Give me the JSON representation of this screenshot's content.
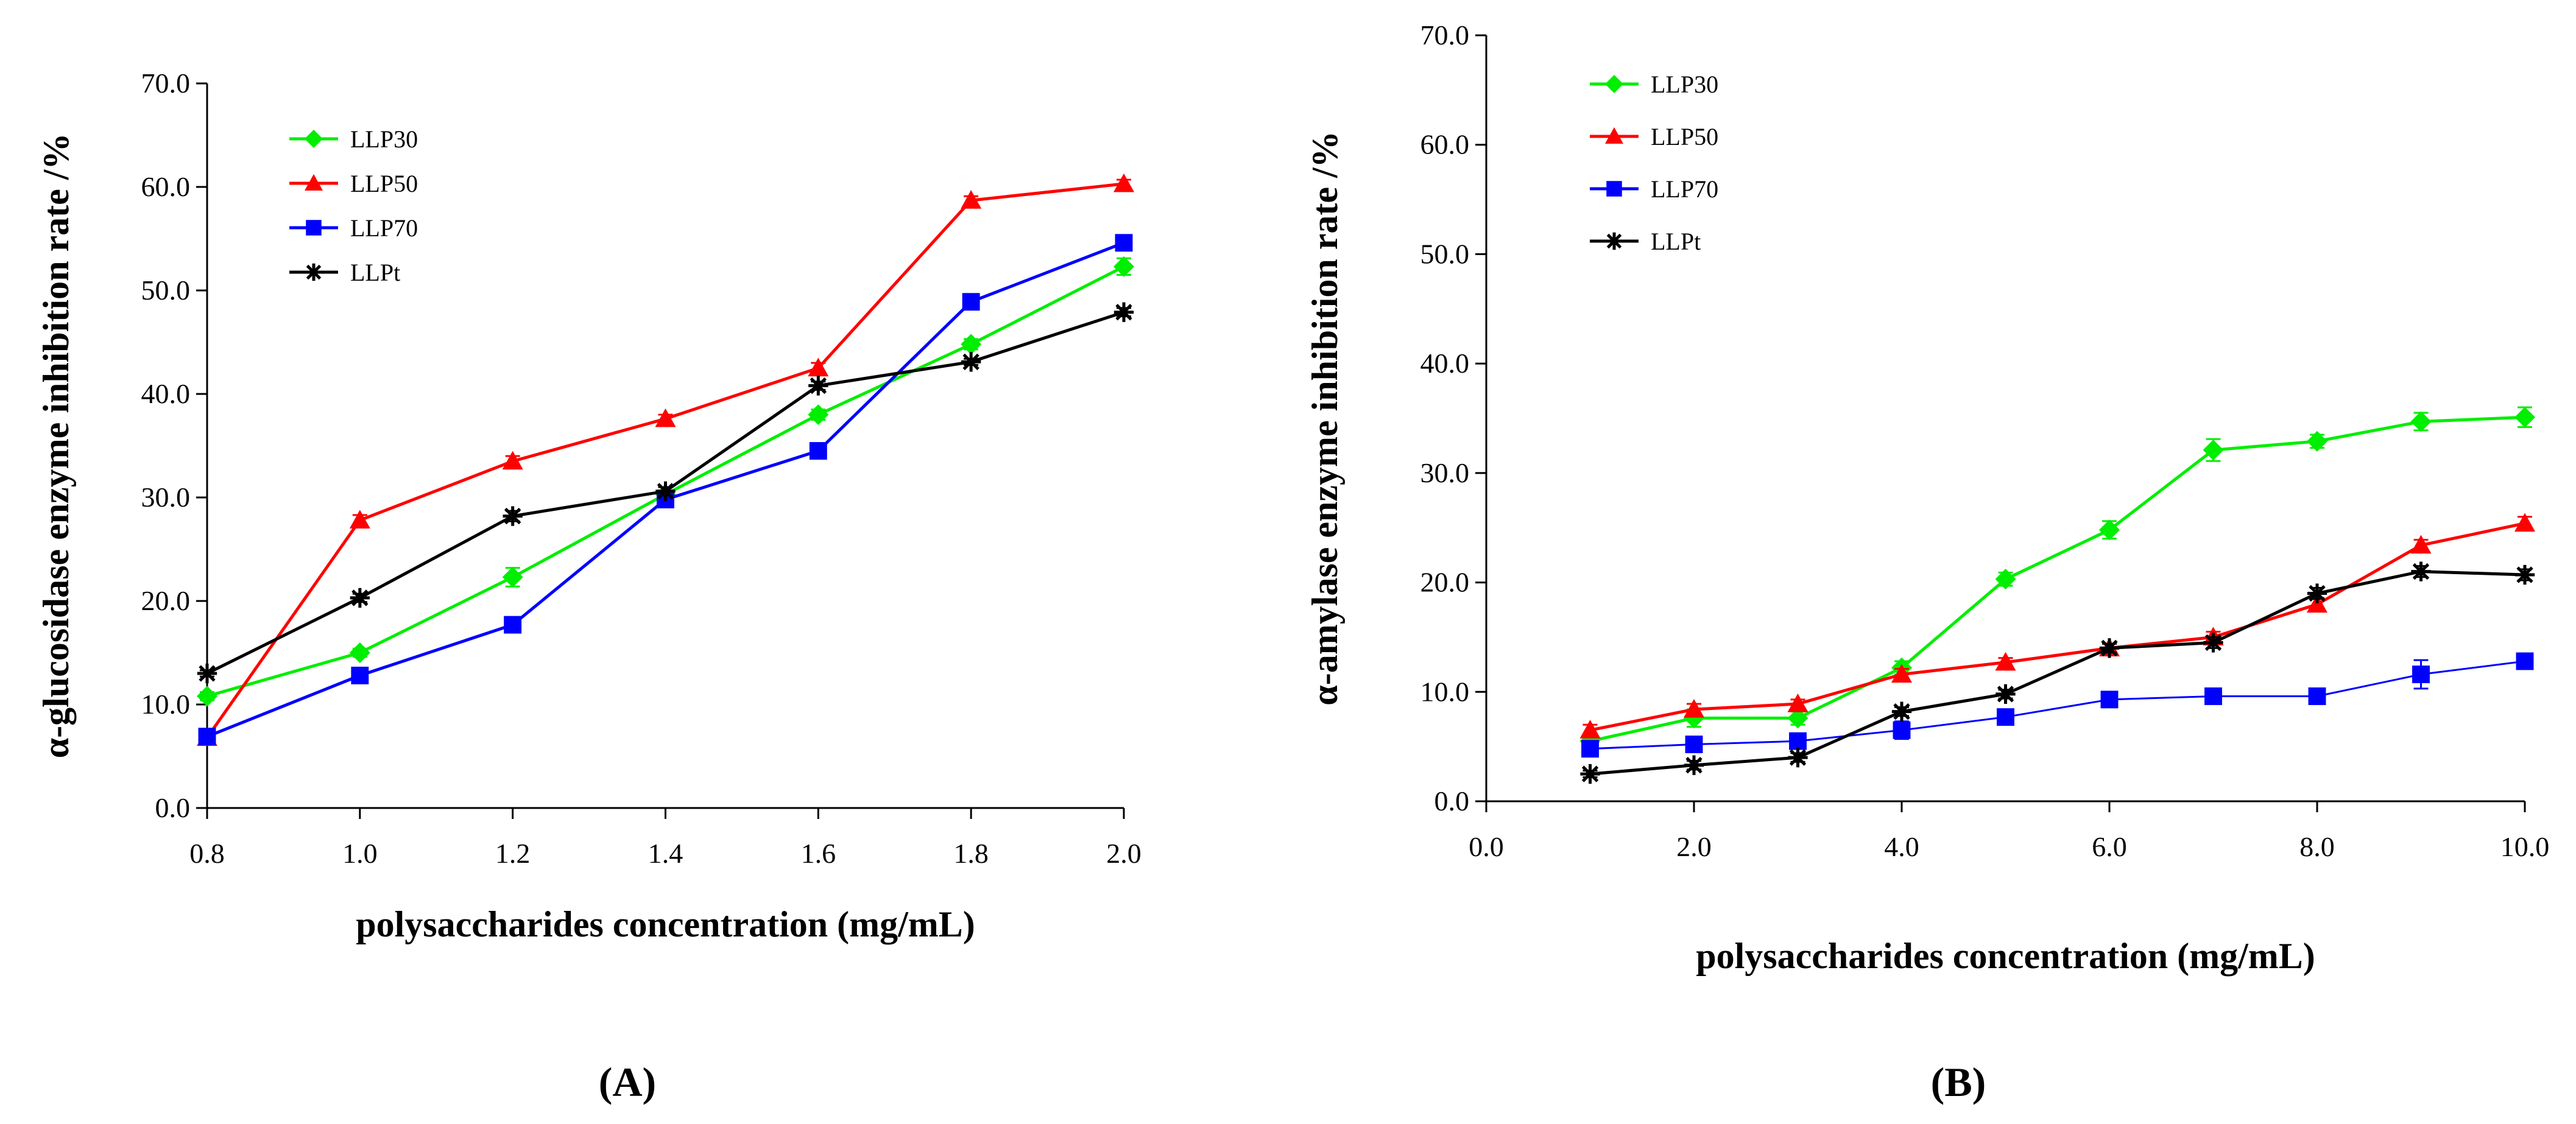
{
  "chart_data": [
    {
      "type": "line",
      "panel_label": "(A)",
      "xlabel": "polysaccharides concentration (mg/mL)",
      "ylabel": "α-glucosidase enzyme inhibition rate /%",
      "x": [
        0.8,
        1.0,
        1.2,
        1.4,
        1.6,
        1.8,
        2.0
      ],
      "xlim": [
        0.8,
        2.0
      ],
      "ylim": [
        0,
        70
      ],
      "x_ticks": [
        "0.8",
        "1.0",
        "1.2",
        "1.4",
        "1.6",
        "1.8",
        "2.0"
      ],
      "y_ticks": [
        "0.0",
        "10.0",
        "20.0",
        "30.0",
        "40.0",
        "50.0",
        "60.0",
        "70.0"
      ],
      "grid": false,
      "legend_position": "top-left",
      "series": [
        {
          "name": "LLP30",
          "color": "#00ee00",
          "marker": "diamond",
          "values": [
            10.8,
            15.0,
            22.3,
            30.3,
            38.0,
            44.8,
            52.3
          ],
          "errors": [
            0.4,
            0.4,
            0.9,
            0.4,
            0.5,
            0.5,
            0.8
          ]
        },
        {
          "name": "LLP50",
          "color": "#ff0000",
          "marker": "triangle",
          "values": [
            6.8,
            27.8,
            33.5,
            37.6,
            42.5,
            58.7,
            60.3
          ],
          "errors": [
            0.4,
            0.5,
            0.5,
            0.4,
            0.5,
            0.4,
            0.4
          ]
        },
        {
          "name": "LLP70",
          "color": "#0000ff",
          "marker": "square",
          "values": [
            6.9,
            12.8,
            17.7,
            29.8,
            34.5,
            48.9,
            54.6
          ],
          "errors": [
            0.3,
            0.6,
            0.5,
            0.4,
            0.5,
            0.6,
            0.5
          ]
        },
        {
          "name": "LLPt",
          "color": "#000000",
          "marker": "star",
          "values": [
            13.0,
            20.3,
            28.2,
            30.6,
            40.8,
            43.1,
            47.9
          ],
          "errors": [
            0.3,
            0.4,
            0.5,
            0.4,
            0.4,
            0.3,
            0.4
          ]
        }
      ]
    },
    {
      "type": "line",
      "panel_label": "(B)",
      "xlabel": "polysaccharides concentration (mg/mL)",
      "ylabel": "α-amylase enzyme inhibition rate /%",
      "x": [
        1,
        2,
        3,
        4,
        5,
        6,
        7,
        8,
        9,
        10
      ],
      "xlim": [
        0,
        10
      ],
      "ylim": [
        0,
        70
      ],
      "x_ticks": [
        "0.0",
        "2.0",
        "4.0",
        "6.0",
        "8.0",
        "10.0"
      ],
      "y_ticks": [
        "0.0",
        "10.0",
        "20.0",
        "30.0",
        "40.0",
        "50.0",
        "60.0",
        "70.0"
      ],
      "grid": false,
      "legend_position": "top-left",
      "series": [
        {
          "name": "LLP30",
          "color": "#00ee00",
          "marker": "diamond",
          "values": [
            5.5,
            7.6,
            7.6,
            12.2,
            20.3,
            24.8,
            32.1,
            32.9,
            34.7,
            35.1
          ],
          "errors": [
            0.5,
            0.8,
            0.6,
            0.6,
            0.6,
            0.8,
            1.0,
            0.6,
            0.8,
            0.9
          ]
        },
        {
          "name": "LLP50",
          "color": "#ff0000",
          "marker": "triangle",
          "values": [
            6.5,
            8.4,
            8.9,
            11.6,
            12.7,
            14.0,
            15.0,
            18.0,
            23.4,
            25.4
          ],
          "errors": [
            0.5,
            0.5,
            0.4,
            0.5,
            0.4,
            0.4,
            0.5,
            0.6,
            0.5,
            0.6
          ]
        },
        {
          "name": "LLP70",
          "color": "#0000ff",
          "marker": "square",
          "values": [
            4.8,
            5.2,
            5.5,
            6.5,
            7.7,
            9.3,
            9.6,
            9.6,
            11.6,
            12.8
          ],
          "errors": [
            0.4,
            0.4,
            0.4,
            0.8,
            0.5,
            0.5,
            0.4,
            0.4,
            1.3,
            0.5
          ]
        },
        {
          "name": "LLPt",
          "color": "#000000",
          "marker": "star",
          "values": [
            2.5,
            3.3,
            4.0,
            8.2,
            9.8,
            14.0,
            14.5,
            19.0,
            21.0,
            20.7
          ],
          "errors": [
            0.3,
            0.4,
            0.4,
            0.4,
            0.4,
            0.4,
            0.5,
            0.5,
            0.5,
            0.5
          ]
        }
      ]
    }
  ]
}
